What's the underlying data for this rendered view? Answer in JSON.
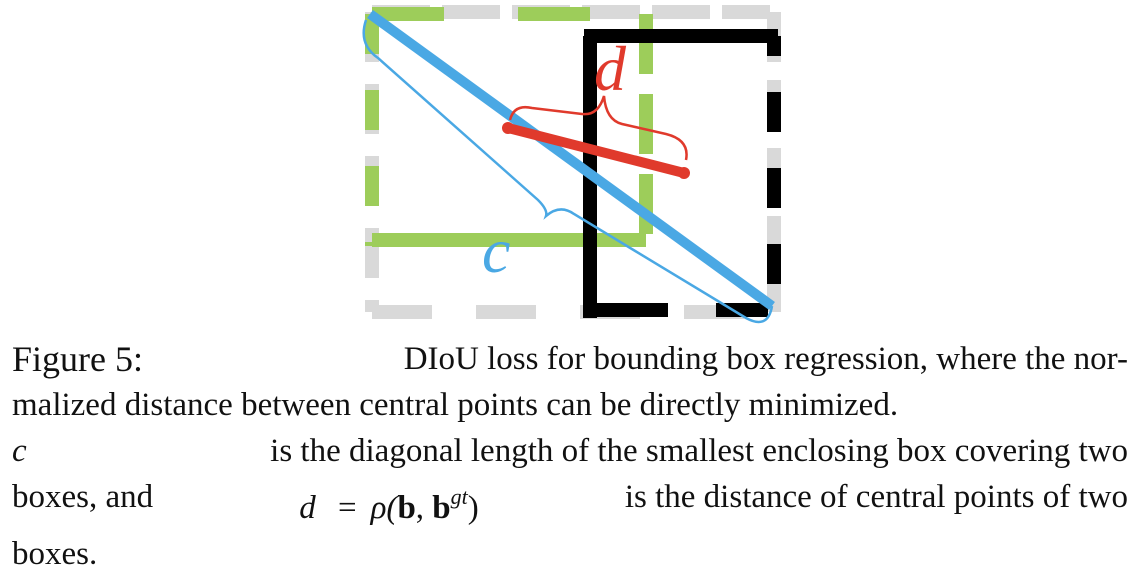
{
  "figure": {
    "colors": {
      "predicted_box": "#9dcd5a",
      "ground_truth_box": "#000000",
      "enclosing_box": "#d9d9d9",
      "diagonal": "#4aa8e4",
      "center_distance": "#e03a2c"
    },
    "labels": {
      "distance": "d",
      "diagonal": "c"
    }
  },
  "caption": {
    "figure_label": "Figure 5:",
    "line1_rest": "DIoU loss for bounding box regression, where the nor-",
    "line2": "malized distance between central points can be directly minimized.",
    "line3_var": "c",
    "line3_rest": "is the diagonal length of the smallest enclosing box covering two",
    "line4_pre": "boxes, and",
    "line4_d": "d",
    "line4_eq": "=",
    "line4_rho": "ρ(",
    "line4_b": "b",
    "line4_comma": ",",
    "line4_b2": "b",
    "line4_sup": "gt",
    "line4_close": ")",
    "line4_post": "is the distance of central points of two",
    "line5": "boxes."
  }
}
